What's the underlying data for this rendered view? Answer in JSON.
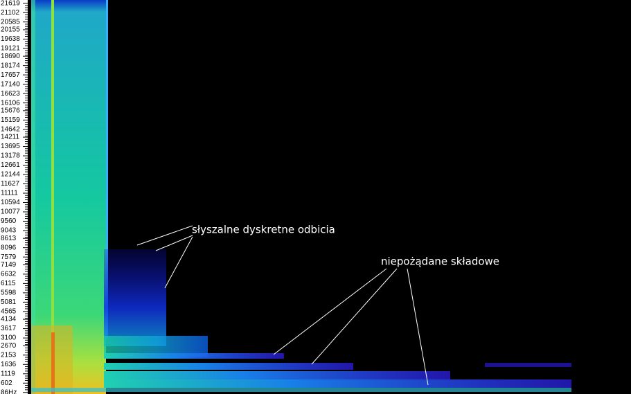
{
  "chart_data": {
    "type": "spectrogram",
    "ylim": [
      0,
      21800
    ],
    "yticks": [
      21619,
      21102,
      20585,
      20155,
      19638,
      19121,
      18690,
      18174,
      17657,
      17140,
      16623,
      16106,
      15676,
      15159,
      14642,
      14211,
      13695,
      13178,
      12661,
      12144,
      11627,
      11111,
      10594,
      10077,
      9560,
      9043,
      8613,
      8096,
      7579,
      7149,
      6632,
      6115,
      5598,
      5081,
      4565,
      4134,
      3617,
      3100,
      2670,
      2153,
      1636,
      1119,
      602,
      {
        "value": 86,
        "label": "86Hz"
      }
    ],
    "annotations": [
      "słyszalne dyskretne odbicia",
      "niepożądane składowe"
    ]
  }
}
